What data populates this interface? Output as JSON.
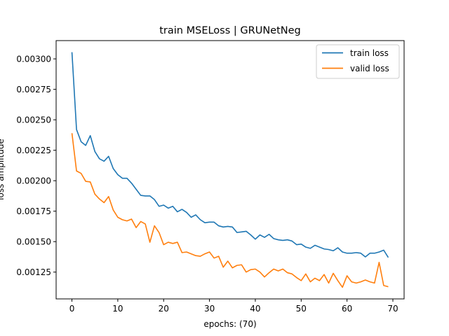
{
  "chart_data": {
    "type": "line",
    "title": "train MSELoss | GRUNetNeg",
    "xlabel": "epochs: (70)",
    "ylabel": "loss amplitude",
    "xlim": [
      -3.45,
      72.45
    ],
    "ylim": [
      0.00103,
      0.00315
    ],
    "xticks": [
      0,
      10,
      20,
      30,
      40,
      50,
      60,
      70
    ],
    "yticks": [
      0.00125,
      0.0015,
      0.00175,
      0.002,
      0.00225,
      0.0025,
      0.00275,
      0.003
    ],
    "ytick_labels": [
      "0.00125",
      "0.00150",
      "0.00175",
      "0.00200",
      "0.00225",
      "0.00250",
      "0.00275",
      "0.00300"
    ],
    "grid": false,
    "legend_position": "top-right",
    "series": [
      {
        "name": "train loss",
        "color": "#1f77b4",
        "values": [
          0.003055,
          0.00242,
          0.00232,
          0.00229,
          0.00237,
          0.00224,
          0.00218,
          0.00216,
          0.0022,
          0.0021,
          0.00205,
          0.00202,
          0.00202,
          0.00198,
          0.00193,
          0.00188,
          0.001875,
          0.001875,
          0.001845,
          0.00179,
          0.0018,
          0.001775,
          0.00179,
          0.001745,
          0.001765,
          0.00174,
          0.0017,
          0.00172,
          0.00168,
          0.001655,
          0.00166,
          0.00166,
          0.00163,
          0.00162,
          0.001625,
          0.00162,
          0.001575,
          0.00158,
          0.001585,
          0.001555,
          0.00152,
          0.001555,
          0.001535,
          0.00156,
          0.001525,
          0.001515,
          0.00151,
          0.001515,
          0.001505,
          0.001475,
          0.00148,
          0.001455,
          0.001445,
          0.00147,
          0.001455,
          0.00144,
          0.001435,
          0.001425,
          0.00145,
          0.001415,
          0.001405,
          0.001405,
          0.00141,
          0.001405,
          0.001375,
          0.001405,
          0.001405,
          0.001415,
          0.00143,
          0.00137
        ]
      },
      {
        "name": "valid loss",
        "color": "#ff7f0e",
        "values": [
          0.00239,
          0.00208,
          0.00206,
          0.001995,
          0.00199,
          0.00189,
          0.00185,
          0.00182,
          0.00187,
          0.00176,
          0.0017,
          0.00168,
          0.00167,
          0.001685,
          0.001615,
          0.001665,
          0.001645,
          0.001495,
          0.00163,
          0.001575,
          0.001475,
          0.001495,
          0.001485,
          0.001495,
          0.00141,
          0.001415,
          0.0014,
          0.001385,
          0.00138,
          0.0014,
          0.001415,
          0.001365,
          0.00138,
          0.00129,
          0.00134,
          0.001285,
          0.001305,
          0.00131,
          0.00125,
          0.00127,
          0.001275,
          0.00125,
          0.00121,
          0.001245,
          0.001275,
          0.00126,
          0.001275,
          0.001245,
          0.001235,
          0.001205,
          0.00118,
          0.001235,
          0.00117,
          0.0012,
          0.00118,
          0.00123,
          0.00116,
          0.00124,
          0.00118,
          0.001125,
          0.00122,
          0.00117,
          0.00116,
          0.00117,
          0.001185,
          0.00117,
          0.00116,
          0.00133,
          0.00114,
          0.00113
        ]
      }
    ]
  }
}
